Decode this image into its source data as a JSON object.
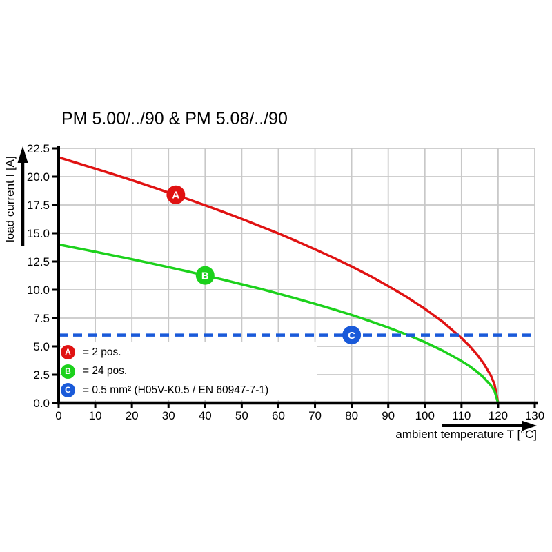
{
  "title": "PM 5.00/../90 & PM 5.08/../90",
  "chart_data": {
    "type": "line",
    "title": "PM 5.00/../90 & PM 5.08/../90",
    "xlabel": "ambient temperature T [°C]",
    "ylabel": "load current I [A]",
    "xlim": [
      0,
      130
    ],
    "ylim": [
      0,
      22.5
    ],
    "x_ticks": [
      0,
      10,
      20,
      30,
      40,
      50,
      60,
      70,
      80,
      90,
      100,
      110,
      120,
      130
    ],
    "y_ticks": [
      "0.0",
      "2.5",
      "5.0",
      "7.5",
      "10.0",
      "12.5",
      "15.0",
      "17.5",
      "20.0",
      "22.5"
    ],
    "grid": true,
    "legend_position": "lower-left-inside",
    "series": [
      {
        "name": "A",
        "kind": "curve",
        "description": "2 pos.",
        "color": "#e01212",
        "marker_point": {
          "x": 32,
          "y": 18.4
        },
        "points": [
          [
            0,
            21.7
          ],
          [
            5,
            21.21
          ],
          [
            10,
            20.71
          ],
          [
            15,
            20.2
          ],
          [
            20,
            19.68
          ],
          [
            25,
            19.15
          ],
          [
            30,
            18.6
          ],
          [
            35,
            18.04
          ],
          [
            40,
            17.47
          ],
          [
            45,
            16.88
          ],
          [
            50,
            16.26
          ],
          [
            55,
            15.63
          ],
          [
            60,
            14.98
          ],
          [
            65,
            14.3
          ],
          [
            70,
            13.58
          ],
          [
            75,
            12.84
          ],
          [
            80,
            12.06
          ],
          [
            85,
            11.23
          ],
          [
            90,
            10.33
          ],
          [
            95,
            9.38
          ],
          [
            100,
            8.32
          ],
          [
            105,
            7.14
          ],
          [
            110,
            5.74
          ],
          [
            112,
            5.1
          ],
          [
            114,
            4.37
          ],
          [
            116,
            3.52
          ],
          [
            118,
            2.43
          ],
          [
            119,
            1.67
          ],
          [
            120,
            0
          ]
        ]
      },
      {
        "name": "B",
        "kind": "curve",
        "description": "24 pos.",
        "color": "#1cd11c",
        "marker_point": {
          "x": 40,
          "y": 11.27
        },
        "points": [
          [
            0,
            14
          ],
          [
            5,
            13.68
          ],
          [
            10,
            13.36
          ],
          [
            15,
            13.03
          ],
          [
            20,
            12.7
          ],
          [
            25,
            12.36
          ],
          [
            30,
            12
          ],
          [
            35,
            11.64
          ],
          [
            40,
            11.27
          ],
          [
            45,
            10.89
          ],
          [
            50,
            10.49
          ],
          [
            55,
            10.09
          ],
          [
            60,
            9.66
          ],
          [
            65,
            9.22
          ],
          [
            70,
            8.76
          ],
          [
            75,
            8.28
          ],
          [
            80,
            7.78
          ],
          [
            85,
            7.24
          ],
          [
            90,
            6.67
          ],
          [
            95,
            6.05
          ],
          [
            100,
            5.37
          ],
          [
            105,
            4.6
          ],
          [
            110,
            3.71
          ],
          [
            112,
            3.29
          ],
          [
            114,
            2.82
          ],
          [
            116,
            2.27
          ],
          [
            118,
            1.57
          ],
          [
            119,
            1.08
          ],
          [
            120,
            0
          ]
        ]
      },
      {
        "name": "C",
        "kind": "hline",
        "description": "0.5 mm² (H05V-K0.5 / EN 60947-7-1)",
        "color": "#1a5ad9",
        "dashed": true,
        "y": 6.0,
        "marker_point": {
          "x": 80,
          "y": 6.0
        }
      }
    ]
  },
  "legend": {
    "items": [
      {
        "id": "A",
        "color": "#e01212",
        "label": "= 2 pos."
      },
      {
        "id": "B",
        "color": "#1cd11c",
        "label": "= 24 pos."
      },
      {
        "id": "C",
        "color": "#1a5ad9",
        "label": "= 0.5 mm² (H05V-K0.5 / EN 60947-7-1)"
      }
    ]
  },
  "colors": {
    "grid": "#c8c8c8",
    "axis": "#000000",
    "background": "#ffffff",
    "marker_text": "#ffffff"
  }
}
